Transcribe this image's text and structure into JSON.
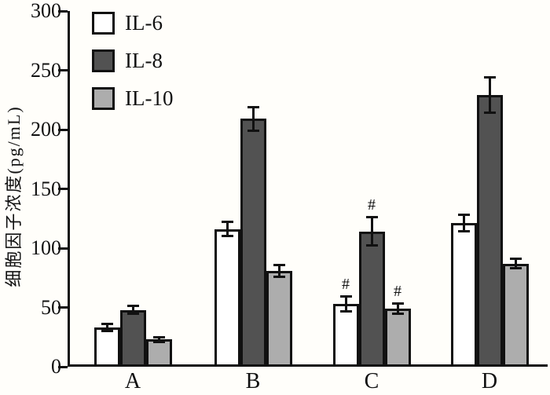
{
  "chart_data": {
    "type": "bar",
    "title": "",
    "ylabel": "细胞因子浓度(pg/mL)",
    "xlabel": "",
    "ylim": [
      0,
      300
    ],
    "yticks": [
      0,
      50,
      100,
      150,
      200,
      250,
      300
    ],
    "grid": false,
    "legend_position": "top-left-inside",
    "categories": [
      "A",
      "B",
      "C",
      "D"
    ],
    "series": [
      {
        "name": "IL-6",
        "fill": "#ffffff",
        "values": [
          33,
          116,
          53,
          121
        ],
        "errors": [
          3,
          6,
          6,
          7
        ]
      },
      {
        "name": "IL-8",
        "fill": "#525252",
        "values": [
          48,
          209,
          114,
          229
        ],
        "errors": [
          3,
          10,
          12,
          15
        ]
      },
      {
        "name": "IL-10",
        "fill": "#adadad",
        "values": [
          23,
          81,
          49,
          87
        ],
        "errors": [
          2,
          5,
          4,
          4
        ]
      }
    ],
    "annotations": [
      {
        "category": "C",
        "series": "IL-6",
        "text": "#"
      },
      {
        "category": "C",
        "series": "IL-8",
        "text": "#"
      },
      {
        "category": "C",
        "series": "IL-10",
        "text": "#"
      }
    ],
    "axis_color": "#111111",
    "error_bar_color": "#111111"
  }
}
